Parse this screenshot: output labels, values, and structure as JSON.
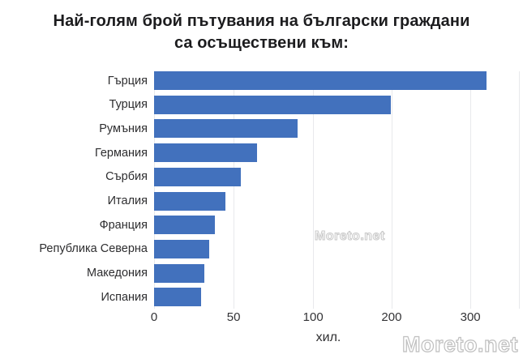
{
  "title": {
    "line1": "Най-голям брой пътувания на български граждани",
    "line2": "са осъществени към:"
  },
  "watermarks": {
    "center": "Moreto.net",
    "corner": "Moreto.net"
  },
  "colors": {
    "bar": "#4271bd",
    "grid": "#e8e9ec",
    "title_text": "#1c1c1e",
    "axis_text": "#333336"
  },
  "chart_data": {
    "type": "bar",
    "orientation": "horizontal",
    "title": "Най-голям брой пътувания на български граждани са осъществени към:",
    "xlabel": "хил.",
    "unit": "хил.",
    "grid": true,
    "legend": false,
    "categories": [
      "Гърция",
      "Турция",
      "Румъния",
      "Германия",
      "Сърбия",
      "Италия",
      "Франция",
      "Република Северна",
      "Македония",
      "Испания"
    ],
    "values": [
      320,
      200,
      90,
      65,
      55,
      45,
      38,
      35,
      31,
      29
    ],
    "bar_pct": [
      91.1,
      64.9,
      39.3,
      28.2,
      23.8,
      19.6,
      16.7,
      15.1,
      13.8,
      12.9
    ],
    "x_ticks": [
      {
        "label": "0",
        "pct": 0
      },
      {
        "label": "50",
        "pct": 21.8
      },
      {
        "label": "100",
        "pct": 43.6
      },
      {
        "label": "200",
        "pct": 65.1
      },
      {
        "label": "300",
        "pct": 86.7
      },
      {
        "label": "",
        "pct": 100
      }
    ]
  }
}
